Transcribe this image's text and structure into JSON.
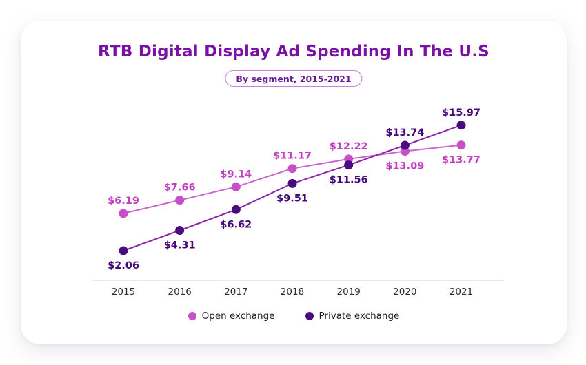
{
  "header": {
    "title": "RTB Digital Display Ad Spending In The U.S",
    "badge": "By segment, 2015-2021"
  },
  "colors": {
    "title": "#7B10A5",
    "badge_text": "#6A1B9A",
    "badge_border": "#C683D8",
    "card_background": "#FFFFFF",
    "axis_line": "#E0E0E6",
    "tick_text": "#2B2B33",
    "legend_text": "#1E1E2A"
  },
  "chart_data": {
    "type": "line",
    "title": "RTB Digital Display Ad Spending In The U.S",
    "subtitle": "By segment, 2015-2021",
    "categories": [
      "2015",
      "2016",
      "2017",
      "2018",
      "2019",
      "2020",
      "2021"
    ],
    "value_prefix": "$",
    "series": [
      {
        "name": "Open exchange",
        "values": [
          6.19,
          7.66,
          9.14,
          11.17,
          12.22,
          13.09,
          13.77
        ],
        "labels": [
          "$6.19",
          "$7.66",
          "$9.14",
          "$11.17",
          "$12.22",
          "$13.09",
          "$13.77"
        ],
        "label_positions": [
          "above",
          "above",
          "above",
          "above",
          "above",
          "below",
          "below"
        ],
        "line_color": "#CE62CF",
        "dot_color": "#C750C8",
        "label_color": "#C23FC4"
      },
      {
        "name": "Private exchange",
        "values": [
          2.06,
          4.31,
          6.62,
          9.51,
          11.56,
          13.74,
          15.97
        ],
        "labels": [
          "$2.06",
          "$4.31",
          "$6.62",
          "$9.51",
          "$11.56",
          "$13.74",
          "$15.97"
        ],
        "label_positions": [
          "below",
          "below",
          "below",
          "below",
          "below",
          "above",
          "above"
        ],
        "line_color": "#8E24AA",
        "dot_color": "#4A0B7E",
        "label_color": "#45077B"
      }
    ],
    "xlabel": "",
    "ylabel": "",
    "grid": false,
    "legend_position": "bottom"
  },
  "legend": {
    "items": [
      {
        "label": "Open exchange",
        "color": "#C750C8"
      },
      {
        "label": "Private exchange",
        "color": "#4A0B7E"
      }
    ]
  }
}
